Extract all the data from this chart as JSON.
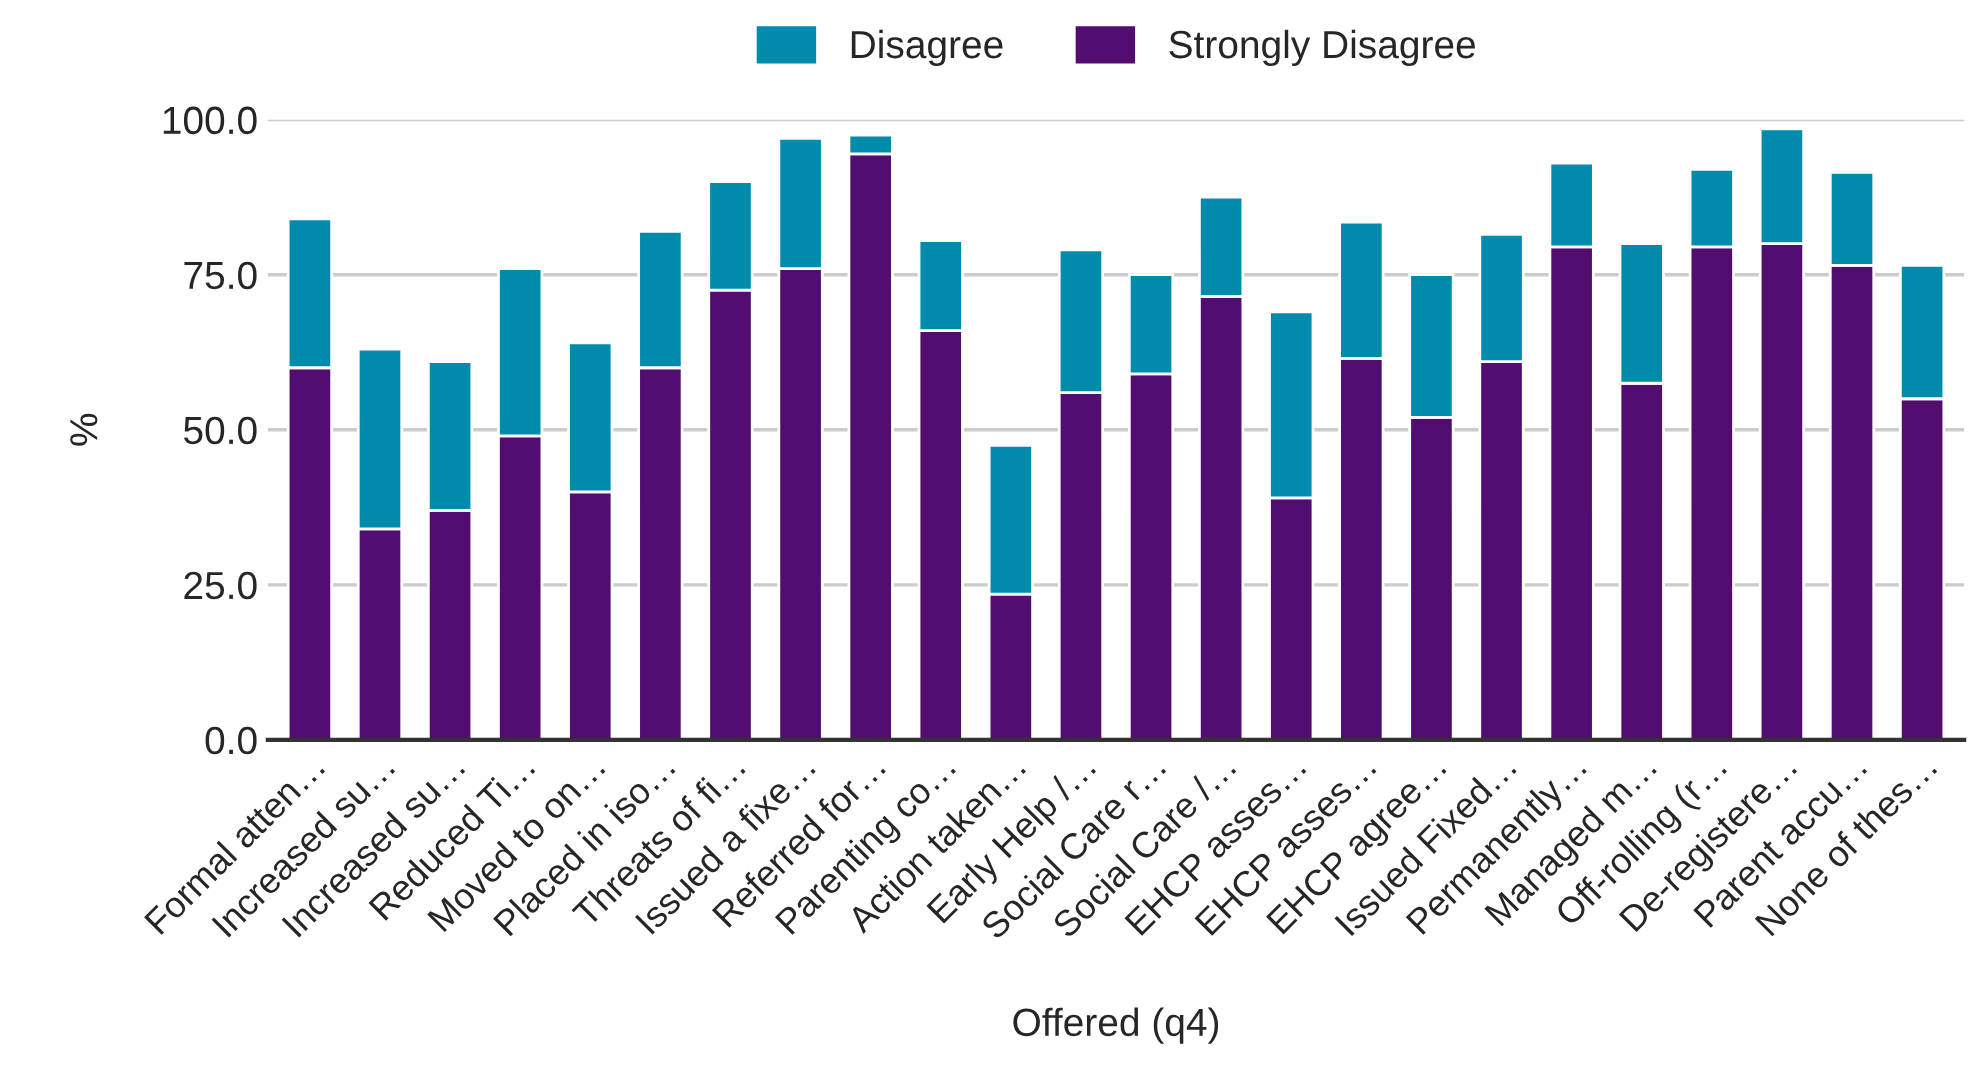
{
  "chart_data": {
    "type": "bar",
    "stacked": true,
    "xlabel": "Offered (q4)",
    "ylabel": "%",
    "categories": [
      "Formal atten…",
      "Increased su…",
      "Increased su…",
      "Reduced Ti…",
      "Moved to on…",
      "Placed in iso…",
      "Threats of fi…",
      "Issued a fixe…",
      "Referred for…",
      "Parenting co…",
      "Action taken…",
      "Early Help /…",
      "Social Care r…",
      "Social Care /…",
      "EHCP asses…",
      "EHCP asses…",
      "EHCP agree…",
      "Issued Fixed…",
      "Permanently…",
      "Managed m…",
      "Off-rolling (r…",
      "De-registere…",
      "Parent accu…",
      "None of thes…"
    ],
    "series": [
      {
        "name": "Strongly Disagree",
        "color": "#520d70",
        "values": [
          60,
          34,
          37,
          49,
          40,
          60,
          72.5,
          76,
          94.5,
          66,
          23.5,
          56,
          59,
          71.5,
          39,
          61.5,
          52,
          61,
          79.5,
          57.5,
          79.5,
          80,
          76.5,
          55
        ]
      },
      {
        "name": "Disagree",
        "color": "#008bad",
        "values": [
          24,
          29,
          24,
          27,
          24,
          22,
          17.5,
          21,
          3,
          14.5,
          24,
          23,
          16,
          16,
          30,
          22,
          23,
          20.5,
          13.5,
          22.5,
          12.5,
          18.5,
          15,
          21.5
        ]
      }
    ],
    "ylim": [
      0,
      100
    ],
    "yticks": [
      {
        "value": 0,
        "label": "0.0"
      },
      {
        "value": 25,
        "label": "25.0"
      },
      {
        "value": 50,
        "label": "50.0"
      },
      {
        "value": 75,
        "label": "75.0"
      },
      {
        "value": 100,
        "label": "100.0"
      }
    ],
    "grid": "y",
    "legend": "top"
  }
}
